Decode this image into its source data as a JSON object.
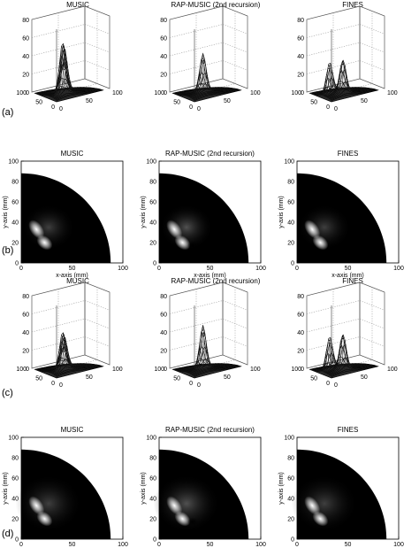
{
  "figure": {
    "row_labels": [
      "(a)",
      "(b)",
      "(c)",
      "(d)"
    ],
    "panel_titles": [
      "MUSIC",
      "RAP-MUSIC (2nd recursion)",
      "FINES"
    ]
  },
  "chart_data": [
    {
      "type": "surface",
      "row": "(a)",
      "zlim": [
        0,
        80
      ],
      "z_ticks": [
        "0",
        "20",
        "40",
        "60",
        "80"
      ],
      "axis_ticks_left": [
        "100",
        "50",
        "0"
      ],
      "axis_ticks_right": [
        "0",
        "50",
        "100"
      ],
      "panels": [
        {
          "title": "MUSIC",
          "peaks": [
            {
              "x": 22,
              "y": 22,
              "height": 55
            },
            {
              "x": 38,
              "y": 32,
              "height": 47
            }
          ]
        },
        {
          "title": "RAP-MUSIC (2nd recursion)",
          "peaks": [
            {
              "x": 30,
              "y": 30,
              "height": 40
            }
          ]
        },
        {
          "title": "FINES",
          "peaks": [
            {
              "x": 18,
              "y": 30,
              "height": 35
            },
            {
              "x": 40,
              "y": 15,
              "height": 33
            }
          ]
        }
      ]
    },
    {
      "type": "heatmap",
      "row": "(b)",
      "xlabel": "x-axis (mm)",
      "ylabel": "y-axis (mm)",
      "xlim": [
        0,
        100
      ],
      "ylim": [
        0,
        100
      ],
      "x_ticks": [
        "0",
        "50",
        "100"
      ],
      "y_ticks": [
        "0",
        "20",
        "40",
        "60",
        "80",
        "100"
      ],
      "panels": [
        {
          "title": "MUSIC",
          "hotspot": [
            15,
            25
          ]
        },
        {
          "title": "RAP-MUSIC (2nd recursion)",
          "hotspot": [
            15,
            25
          ]
        },
        {
          "title": "FINES",
          "hotspot": [
            15,
            25
          ]
        }
      ]
    },
    {
      "type": "surface",
      "row": "(c)",
      "zlim": [
        0,
        80
      ],
      "z_ticks": [
        "0",
        "20",
        "40",
        "60",
        "80"
      ],
      "axis_ticks_left": [
        "100",
        "50",
        "0"
      ],
      "axis_ticks_right": [
        "0",
        "50",
        "100"
      ],
      "panels": [
        {
          "title": "MUSIC",
          "peaks": [
            {
              "x": 22,
              "y": 22,
              "height": 40
            },
            {
              "x": 38,
              "y": 32,
              "height": 33
            }
          ]
        },
        {
          "title": "RAP-MUSIC (2nd recursion)",
          "peaks": [
            {
              "x": 30,
              "y": 30,
              "height": 45
            }
          ]
        },
        {
          "title": "FINES",
          "peaks": [
            {
              "x": 18,
              "y": 30,
              "height": 37
            },
            {
              "x": 40,
              "y": 15,
              "height": 35
            }
          ]
        }
      ]
    },
    {
      "type": "heatmap",
      "row": "(d)",
      "xlabel": "x-axis (mm)",
      "ylabel": "y-axis (mm)",
      "xlim": [
        0,
        100
      ],
      "ylim": [
        0,
        100
      ],
      "x_ticks": [
        "0",
        "50",
        "100"
      ],
      "y_ticks": [
        "0",
        "20",
        "40",
        "60",
        "80",
        "100"
      ],
      "panels": [
        {
          "title": "MUSIC",
          "hotspot": [
            15,
            25
          ]
        },
        {
          "title": "RAP-MUSIC (2nd recursion)",
          "hotspot": [
            15,
            25
          ]
        },
        {
          "title": "FINES",
          "hotspot": [
            15,
            25
          ]
        }
      ]
    }
  ]
}
